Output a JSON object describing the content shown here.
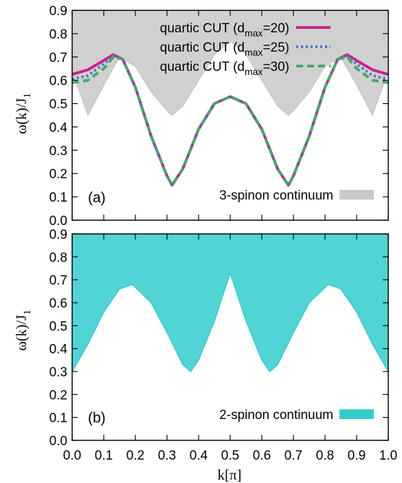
{
  "chart_data": [
    {
      "panel": "(a)",
      "type": "line",
      "title": "",
      "xlabel": "",
      "ylabel": "ω(k)/J",
      "ylabel_sub": "1",
      "xlim": [
        0.0,
        1.0
      ],
      "ylim": [
        0.0,
        0.9
      ],
      "yticks": [
        "0.0",
        "0.1",
        "0.2",
        "0.3",
        "0.4",
        "0.5",
        "0.6",
        "0.7",
        "0.8",
        "0.9"
      ],
      "continuum": {
        "name": "3-spinon continuum",
        "color": "#c8c8c8",
        "x": [
          0.0,
          0.05,
          0.1,
          0.15,
          0.2,
          0.25,
          0.3,
          0.316,
          0.35,
          0.4,
          0.45,
          0.5,
          0.55,
          0.6,
          0.65,
          0.684,
          0.7,
          0.75,
          0.8,
          0.85,
          0.9,
          0.95,
          1.0
        ],
        "lower": [
          0.64,
          0.45,
          0.58,
          0.7,
          0.66,
          0.55,
          0.47,
          0.45,
          0.49,
          0.6,
          0.71,
          0.77,
          0.71,
          0.6,
          0.49,
          0.45,
          0.47,
          0.55,
          0.66,
          0.7,
          0.58,
          0.45,
          0.64
        ],
        "upper": [
          0.9,
          0.9,
          0.9,
          0.9,
          0.9,
          0.9,
          0.9,
          0.9,
          0.9,
          0.9,
          0.9,
          0.9,
          0.9,
          0.9,
          0.9,
          0.9,
          0.9,
          0.9,
          0.9,
          0.9,
          0.9,
          0.9,
          0.9
        ]
      },
      "series": [
        {
          "name": "quartic CUT (d",
          "sub": "max",
          "suffix": "=20)",
          "color": "#cc2288",
          "style": "solid",
          "x": [
            0.0,
            0.05,
            0.1,
            0.13,
            0.16,
            0.2,
            0.25,
            0.3,
            0.316,
            0.35,
            0.4,
            0.45,
            0.5,
            0.55,
            0.6,
            0.65,
            0.684,
            0.7,
            0.75,
            0.8,
            0.84,
            0.87,
            0.9,
            0.95,
            1.0
          ],
          "y": [
            0.625,
            0.645,
            0.685,
            0.71,
            0.69,
            0.57,
            0.36,
            0.19,
            0.15,
            0.22,
            0.39,
            0.5,
            0.53,
            0.5,
            0.39,
            0.22,
            0.15,
            0.19,
            0.36,
            0.57,
            0.69,
            0.71,
            0.685,
            0.645,
            0.625
          ]
        },
        {
          "name": "quartic CUT (d",
          "sub": "max",
          "suffix": "=25)",
          "color": "#4477cc",
          "style": "dotted",
          "x": [
            0.0,
            0.05,
            0.1,
            0.13,
            0.16,
            0.2,
            0.25,
            0.3,
            0.316,
            0.35,
            0.4,
            0.45,
            0.5,
            0.55,
            0.6,
            0.65,
            0.684,
            0.7,
            0.75,
            0.8,
            0.84,
            0.87,
            0.9,
            0.95,
            1.0
          ],
          "y": [
            0.605,
            0.62,
            0.67,
            0.705,
            0.69,
            0.57,
            0.36,
            0.19,
            0.15,
            0.22,
            0.39,
            0.5,
            0.53,
            0.5,
            0.39,
            0.22,
            0.15,
            0.19,
            0.36,
            0.57,
            0.69,
            0.705,
            0.67,
            0.62,
            0.605
          ]
        },
        {
          "name": "quartic CUT (d",
          "sub": "max",
          "suffix": "=30)",
          "color": "#44aa66",
          "style": "dashed",
          "x": [
            0.0,
            0.05,
            0.1,
            0.13,
            0.16,
            0.2,
            0.25,
            0.3,
            0.316,
            0.35,
            0.4,
            0.45,
            0.5,
            0.55,
            0.6,
            0.65,
            0.684,
            0.7,
            0.75,
            0.8,
            0.84,
            0.87,
            0.9,
            0.95,
            1.0
          ],
          "y": [
            0.59,
            0.6,
            0.65,
            0.7,
            0.69,
            0.57,
            0.36,
            0.19,
            0.15,
            0.22,
            0.39,
            0.5,
            0.53,
            0.5,
            0.39,
            0.22,
            0.15,
            0.19,
            0.36,
            0.57,
            0.69,
            0.7,
            0.65,
            0.6,
            0.59
          ]
        }
      ]
    },
    {
      "panel": "(b)",
      "type": "area",
      "title": "",
      "xlabel": "k[π]",
      "ylabel": "ω(k)/J",
      "ylabel_sub": "1",
      "xlim": [
        0.0,
        1.0
      ],
      "ylim": [
        0.0,
        0.9
      ],
      "xticks": [
        "0.0",
        "0.1",
        "0.2",
        "0.3",
        "0.4",
        "0.5",
        "0.6",
        "0.7",
        "0.8",
        "0.9",
        "1.0"
      ],
      "yticks": [
        "0.0",
        "0.1",
        "0.2",
        "0.3",
        "0.4",
        "0.5",
        "0.6",
        "0.7",
        "0.8",
        "0.9"
      ],
      "continuum": {
        "name": "2-spinon continuum",
        "color": "#33cccc",
        "x": [
          0.0,
          0.05,
          0.1,
          0.15,
          0.19,
          0.25,
          0.3,
          0.35,
          0.375,
          0.4,
          0.45,
          0.5,
          0.55,
          0.6,
          0.625,
          0.65,
          0.7,
          0.75,
          0.81,
          0.85,
          0.9,
          0.95,
          1.0
        ],
        "lower": [
          0.3,
          0.42,
          0.56,
          0.66,
          0.68,
          0.6,
          0.47,
          0.33,
          0.3,
          0.35,
          0.52,
          0.73,
          0.52,
          0.35,
          0.3,
          0.33,
          0.47,
          0.6,
          0.68,
          0.66,
          0.56,
          0.42,
          0.3
        ],
        "upper": [
          0.9,
          0.9,
          0.9,
          0.9,
          0.9,
          0.9,
          0.9,
          0.9,
          0.9,
          0.9,
          0.9,
          0.9,
          0.9,
          0.9,
          0.9,
          0.9,
          0.9,
          0.9,
          0.9,
          0.9,
          0.9,
          0.9,
          0.9
        ]
      }
    }
  ]
}
